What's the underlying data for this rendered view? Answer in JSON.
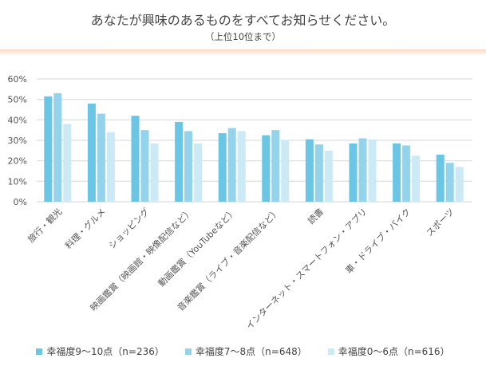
{
  "header": {
    "title": "あなたが興味のあるものをすべてお知らせください。",
    "subtitle": "（上位10位まで）"
  },
  "chart_data": {
    "type": "bar",
    "categories": [
      "旅行・観光",
      "料理・グルメ",
      "ショッピング",
      "映画鑑賞（映画館・映像配信など）",
      "動画鑑賞（YouTubeなど）",
      "音楽鑑賞（ライブ・音楽配信など）",
      "読書",
      "インターネット・スマートフォン・アプリ",
      "車・ドライブ・バイク",
      "スポーツ"
    ],
    "series": [
      {
        "name": "幸福度9〜10点（n=236）",
        "color": "#6ac6e4",
        "values": [
          51.5,
          48,
          42,
          39,
          33.5,
          32.5,
          30.5,
          28.5,
          28.5,
          23
        ]
      },
      {
        "name": "幸福度7〜8点（n=648）",
        "color": "#93d3ec",
        "values": [
          53,
          43,
          35,
          34.5,
          36,
          35,
          28,
          31,
          27.5,
          19
        ]
      },
      {
        "name": "幸福度0〜6点（n=616）",
        "color": "#cbeaf5",
        "values": [
          38,
          34,
          28.5,
          28.5,
          34.5,
          30,
          25,
          30.5,
          22.5,
          17
        ]
      }
    ],
    "yticks": [
      "0%",
      "10%",
      "20%",
      "30%",
      "40%",
      "50%",
      "60%"
    ],
    "ylim": [
      0,
      60
    ],
    "grid": true,
    "legend": "bottom"
  }
}
